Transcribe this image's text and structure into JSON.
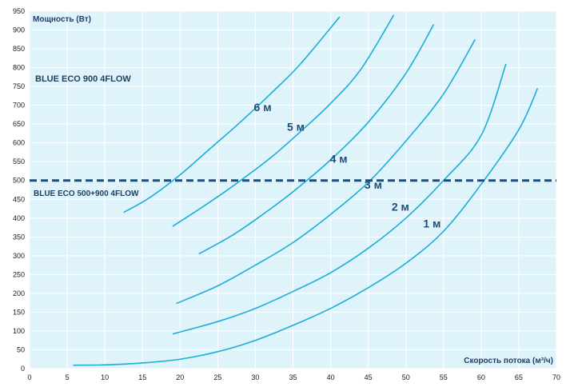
{
  "chart_data": {
    "type": "line",
    "title": "",
    "xlabel": "Скорость потока (м³/ч)",
    "ylabel": "Мощность (Вт)",
    "xlim": [
      0,
      70
    ],
    "ylim": [
      0,
      950
    ],
    "x_ticks": [
      0,
      5,
      10,
      15,
      20,
      25,
      30,
      35,
      40,
      45,
      50,
      55,
      60,
      65,
      70
    ],
    "y_ticks": [
      0,
      50,
      100,
      150,
      200,
      250,
      300,
      350,
      400,
      450,
      500,
      550,
      600,
      650,
      700,
      750,
      800,
      850,
      900,
      950
    ],
    "grid": true,
    "line_color": "#1aaed9",
    "background_color": "#dff3fb",
    "grid_color": "#ffffff",
    "reference_line": {
      "y": 500,
      "color": "#1f4e79",
      "style": "dashed"
    },
    "annotations": {
      "upper_model": "BLUE ECO 900  4FLOW",
      "lower_model": "BLUE ECO 500+900  4FLOW"
    },
    "series": [
      {
        "name": "1 м",
        "points": [
          [
            5.8,
            9
          ],
          [
            10,
            10
          ],
          [
            15,
            15
          ],
          [
            20,
            25
          ],
          [
            25,
            45
          ],
          [
            30,
            75
          ],
          [
            35,
            115
          ],
          [
            40,
            160
          ],
          [
            45,
            215
          ],
          [
            50,
            280
          ],
          [
            55,
            365
          ],
          [
            60,
            490
          ],
          [
            65,
            635
          ],
          [
            67.5,
            745
          ]
        ]
      },
      {
        "name": "2 м",
        "points": [
          [
            19,
            92
          ],
          [
            25,
            125
          ],
          [
            30,
            160
          ],
          [
            35,
            205
          ],
          [
            40,
            255
          ],
          [
            45,
            320
          ],
          [
            50,
            400
          ],
          [
            55,
            500
          ],
          [
            60,
            620
          ],
          [
            63.3,
            810
          ]
        ]
      },
      {
        "name": "3 м",
        "points": [
          [
            19.5,
            173
          ],
          [
            25,
            220
          ],
          [
            30,
            275
          ],
          [
            35,
            335
          ],
          [
            40,
            410
          ],
          [
            45,
            495
          ],
          [
            50,
            605
          ],
          [
            55,
            730
          ],
          [
            59.2,
            875
          ]
        ]
      },
      {
        "name": "4 м",
        "points": [
          [
            22.5,
            305
          ],
          [
            27,
            355
          ],
          [
            31,
            410
          ],
          [
            35,
            470
          ],
          [
            40,
            555
          ],
          [
            45,
            655
          ],
          [
            50,
            785
          ],
          [
            53.7,
            915
          ]
        ]
      },
      {
        "name": "5 м",
        "points": [
          [
            19,
            378
          ],
          [
            23,
            430
          ],
          [
            27,
            485
          ],
          [
            32,
            560
          ],
          [
            36,
            630
          ],
          [
            40,
            705
          ],
          [
            44,
            795
          ],
          [
            48.4,
            940
          ]
        ]
      },
      {
        "name": "6 м",
        "points": [
          [
            12.5,
            415
          ],
          [
            16,
            455
          ],
          [
            20,
            515
          ],
          [
            24,
            585
          ],
          [
            28,
            655
          ],
          [
            32,
            730
          ],
          [
            36,
            810
          ],
          [
            41.2,
            935
          ]
        ]
      }
    ],
    "series_label_anchor": [
      {
        "x": 52.3,
        "y": 375
      },
      {
        "x": 48.1,
        "y": 420
      },
      {
        "x": 44.5,
        "y": 478
      },
      {
        "x": 39.9,
        "y": 547
      },
      {
        "x": 34.2,
        "y": 632
      },
      {
        "x": 29.8,
        "y": 684
      }
    ]
  }
}
